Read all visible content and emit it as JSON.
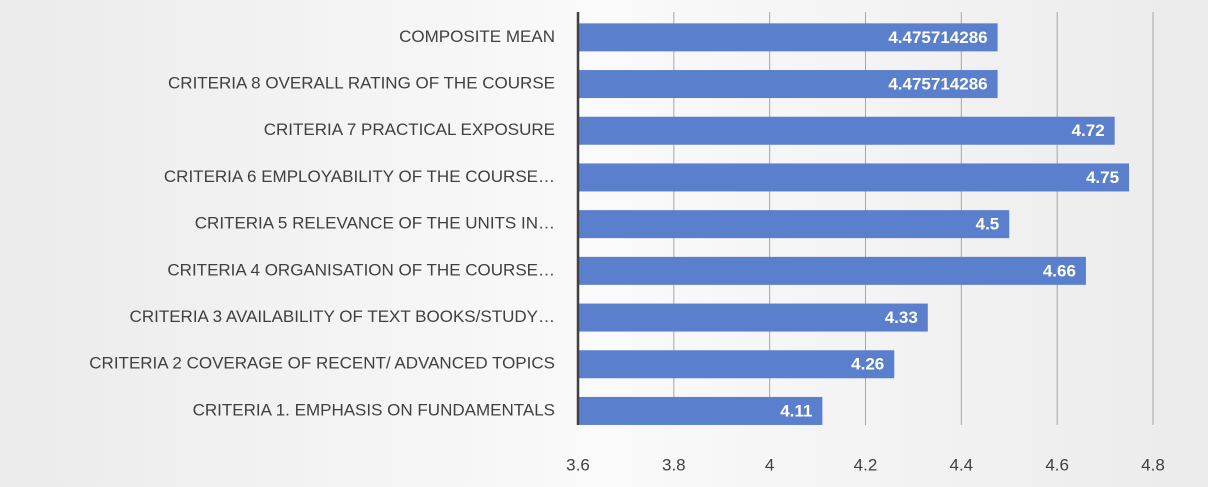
{
  "chart_data": {
    "type": "bar",
    "orientation": "horizontal",
    "categories": [
      "COMPOSITE MEAN",
      "CRITERIA 8 OVERALL RATING OF THE COURSE",
      "CRITERIA 7 PRACTICAL EXPOSURE",
      "CRITERIA 6 EMPLOYABILITY OF THE COURSE…",
      "CRITERIA 5  RELEVANCE OF THE UNITS IN…",
      "CRITERIA 4 ORGANISATION OF THE COURSE…",
      "CRITERIA 3  AVAILABILITY OF TEXT BOOKS/STUDY…",
      "CRITERIA 2 COVERAGE OF RECENT/ ADVANCED TOPICS",
      "CRITERIA 1. EMPHASIS ON FUNDAMENTALS"
    ],
    "values": [
      4.475714286,
      4.475714286,
      4.72,
      4.75,
      4.5,
      4.66,
      4.33,
      4.26,
      4.11
    ],
    "color": "#5a7fcd",
    "xlim": [
      3.6,
      4.8
    ],
    "xticks": [
      3.6,
      3.8,
      4,
      4.2,
      4.4,
      4.6,
      4.8
    ],
    "grid": true
  }
}
